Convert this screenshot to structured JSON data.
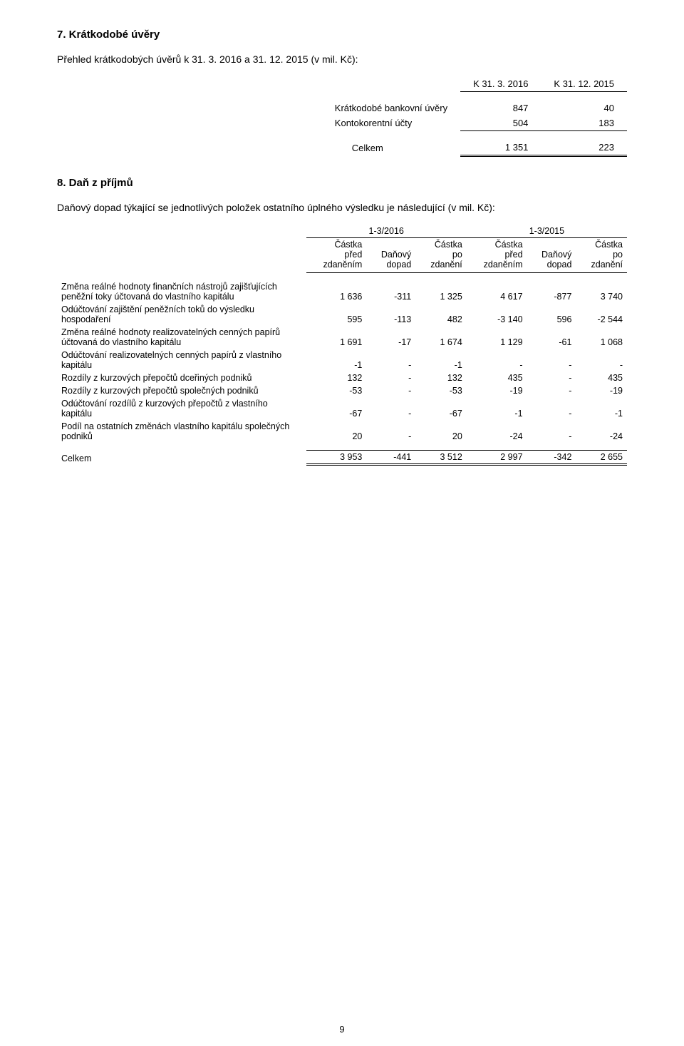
{
  "section7": {
    "heading": "7.  Krátkodobé úvěry",
    "intro": "Přehled krátkodobých úvěrů k 31. 3. 2016 a 31. 12. 2015 (v mil. Kč):",
    "col1": "K 31. 3. 2016",
    "col2": "K 31. 12. 2015",
    "rows": [
      {
        "label": "Krátkodobé bankovní úvěry",
        "v1": "847",
        "v2": "40"
      },
      {
        "label": "Kontokorentní účty",
        "v1": "504",
        "v2": "183"
      }
    ],
    "total_label": "Celkem",
    "total_v1": "1 351",
    "total_v2": "223"
  },
  "section8": {
    "heading": "8.  Daň z příjmů",
    "intro": "Daňový dopad týkající se jednotlivých položek ostatního úplného výsledku je následující (v mil. Kč):",
    "period1": "1-3/2016",
    "period2": "1-3/2015",
    "cols": {
      "c1": "Částka\npřed\nzdaněním",
      "c2": "Daňový\ndopad",
      "c3": "Částka\npo\nzdanění",
      "c4": "Částka\npřed\nzdaněním",
      "c5": "Daňový\ndopad",
      "c6": "Částka\npo\nzdanění"
    },
    "rows": [
      {
        "label": "Změna reálné hodnoty finančních nástrojů zajišťujících peněžní toky účtovaná do vlastního kapitálu",
        "v": [
          "1 636",
          "-311",
          "1 325",
          "4 617",
          "-877",
          "3 740"
        ]
      },
      {
        "label": "Odúčtování zajištění peněžních toků do výsledku hospodaření",
        "v": [
          "595",
          "-113",
          "482",
          "-3 140",
          "596",
          "-2 544"
        ]
      },
      {
        "label": "Změna reálné hodnoty realizovatelných cenných papírů účtovaná do vlastního kapitálu",
        "v": [
          "1 691",
          "-17",
          "1 674",
          "1 129",
          "-61",
          "1 068"
        ]
      },
      {
        "label": "Odúčtování realizovatelných cenných papírů z vlastního kapitálu",
        "v": [
          "-1",
          "-",
          "-1",
          "-",
          "-",
          "-"
        ]
      },
      {
        "label": "Rozdíly z kurzových přepočtů dceřiných podniků",
        "v": [
          "132",
          "-",
          "132",
          "435",
          "-",
          "435"
        ]
      },
      {
        "label": "Rozdíly z kurzových přepočtů společných podniků",
        "v": [
          "-53",
          "-",
          "-53",
          "-19",
          "-",
          "-19"
        ]
      },
      {
        "label": "Odúčtování rozdílů z kurzových přepočtů z vlastního kapitálu",
        "v": [
          "-67",
          "-",
          "-67",
          "-1",
          "-",
          "-1"
        ]
      },
      {
        "label": "Podíl na ostatních změnách vlastního kapitálu společných podniků",
        "v": [
          "20",
          "-",
          "20",
          "-24",
          "-",
          "-24"
        ]
      }
    ],
    "total_label": "Celkem",
    "total_v": [
      "3 953",
      "-441",
      "3 512",
      "2 997",
      "-342",
      "2 655"
    ]
  },
  "page_number": "9"
}
